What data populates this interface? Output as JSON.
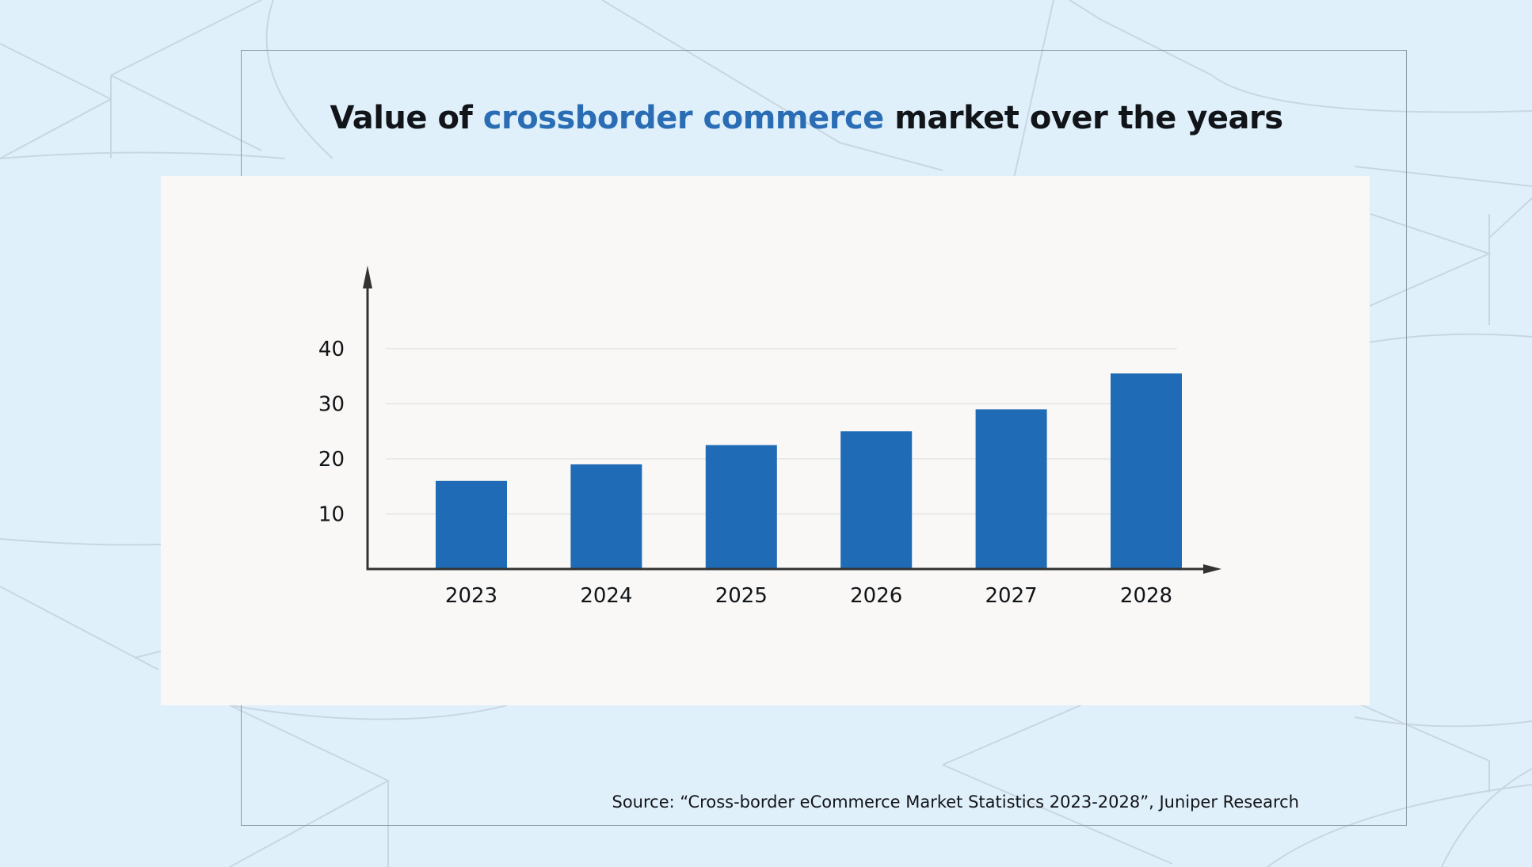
{
  "title": {
    "prefix": "Value of ",
    "highlight": "crossborder commerce",
    "suffix": " market over the years"
  },
  "colors": {
    "background": "#e0f0fb",
    "bar": "#206bb5",
    "accent": "#2a6db5",
    "panel": "#f9f8f6"
  },
  "source": "Source: “Cross-border eCommerce Market Statistics 2023-2028”, Juniper Research",
  "chart_data": {
    "type": "bar",
    "title": "Value of crossborder commerce market over the years",
    "xlabel": "",
    "ylabel": "",
    "categories": [
      "2023",
      "2024",
      "2025",
      "2026",
      "2027",
      "2028"
    ],
    "values": [
      16,
      19,
      22.5,
      25,
      29,
      35.5
    ],
    "yticks": [
      10,
      20,
      30,
      40
    ],
    "ylim": [
      0,
      50
    ],
    "grid": true,
    "legend": "none"
  }
}
